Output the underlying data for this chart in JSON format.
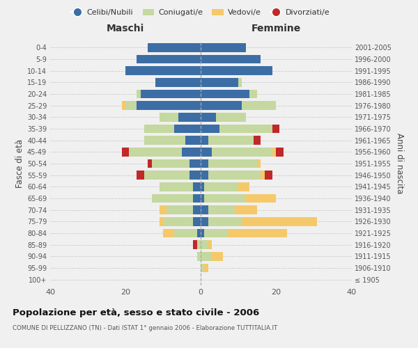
{
  "age_groups": [
    "100+",
    "95-99",
    "90-94",
    "85-89",
    "80-84",
    "75-79",
    "70-74",
    "65-69",
    "60-64",
    "55-59",
    "50-54",
    "45-49",
    "40-44",
    "35-39",
    "30-34",
    "25-29",
    "20-24",
    "15-19",
    "10-14",
    "5-9",
    "0-4"
  ],
  "birth_years": [
    "≤ 1905",
    "1906-1910",
    "1911-1915",
    "1916-1920",
    "1921-1925",
    "1926-1930",
    "1931-1935",
    "1936-1940",
    "1941-1945",
    "1946-1950",
    "1951-1955",
    "1956-1960",
    "1961-1965",
    "1966-1970",
    "1971-1975",
    "1976-1980",
    "1981-1985",
    "1986-1990",
    "1991-1995",
    "1996-2000",
    "2001-2005"
  ],
  "colors": {
    "celibi": "#3c6ea5",
    "coniugati": "#c5d8a0",
    "vedovi": "#f5c96a",
    "divorziati": "#c0282a"
  },
  "maschi": {
    "celibi": [
      0,
      0,
      0,
      0,
      1,
      2,
      2,
      2,
      2,
      3,
      3,
      5,
      4,
      7,
      6,
      17,
      16,
      12,
      20,
      17,
      14
    ],
    "coniugati": [
      0,
      0,
      1,
      1,
      6,
      8,
      7,
      11,
      9,
      12,
      10,
      14,
      11,
      8,
      5,
      3,
      1,
      0,
      0,
      0,
      0
    ],
    "vedovi": [
      0,
      0,
      0,
      0,
      3,
      1,
      2,
      0,
      0,
      0,
      0,
      0,
      0,
      0,
      0,
      1,
      0,
      0,
      0,
      0,
      0
    ],
    "divorziati": [
      0,
      0,
      0,
      1,
      0,
      0,
      0,
      0,
      0,
      2,
      1,
      2,
      0,
      0,
      0,
      0,
      0,
      0,
      0,
      0,
      0
    ]
  },
  "femmine": {
    "celibi": [
      0,
      0,
      0,
      0,
      1,
      2,
      2,
      1,
      1,
      2,
      2,
      3,
      2,
      5,
      4,
      11,
      13,
      10,
      19,
      16,
      12
    ],
    "coniugati": [
      0,
      1,
      3,
      2,
      6,
      9,
      7,
      11,
      9,
      14,
      13,
      16,
      12,
      14,
      8,
      9,
      2,
      1,
      0,
      0,
      0
    ],
    "vedovi": [
      0,
      1,
      3,
      1,
      16,
      20,
      6,
      8,
      3,
      1,
      1,
      1,
      0,
      0,
      0,
      0,
      0,
      0,
      0,
      0,
      0
    ],
    "divorziati": [
      0,
      0,
      0,
      0,
      0,
      0,
      0,
      0,
      0,
      2,
      0,
      2,
      2,
      2,
      0,
      0,
      0,
      0,
      0,
      0,
      0
    ]
  },
  "xlim": 40,
  "title": "Popolazione per età, sesso e stato civile - 2006",
  "subtitle": "COMUNE DI PELLIZZANO (TN) - Dati ISTAT 1° gennaio 2006 - Elaborazione TUTTITALIA.IT",
  "ylabel_left": "Fasce di età",
  "ylabel_right": "Anni di nascita",
  "xlabel_maschi": "Maschi",
  "xlabel_femmine": "Femmine",
  "legend_labels": [
    "Celibi/Nubili",
    "Coniugati/e",
    "Vedovi/e",
    "Divorziati/e"
  ],
  "background_color": "#f0f0f0"
}
